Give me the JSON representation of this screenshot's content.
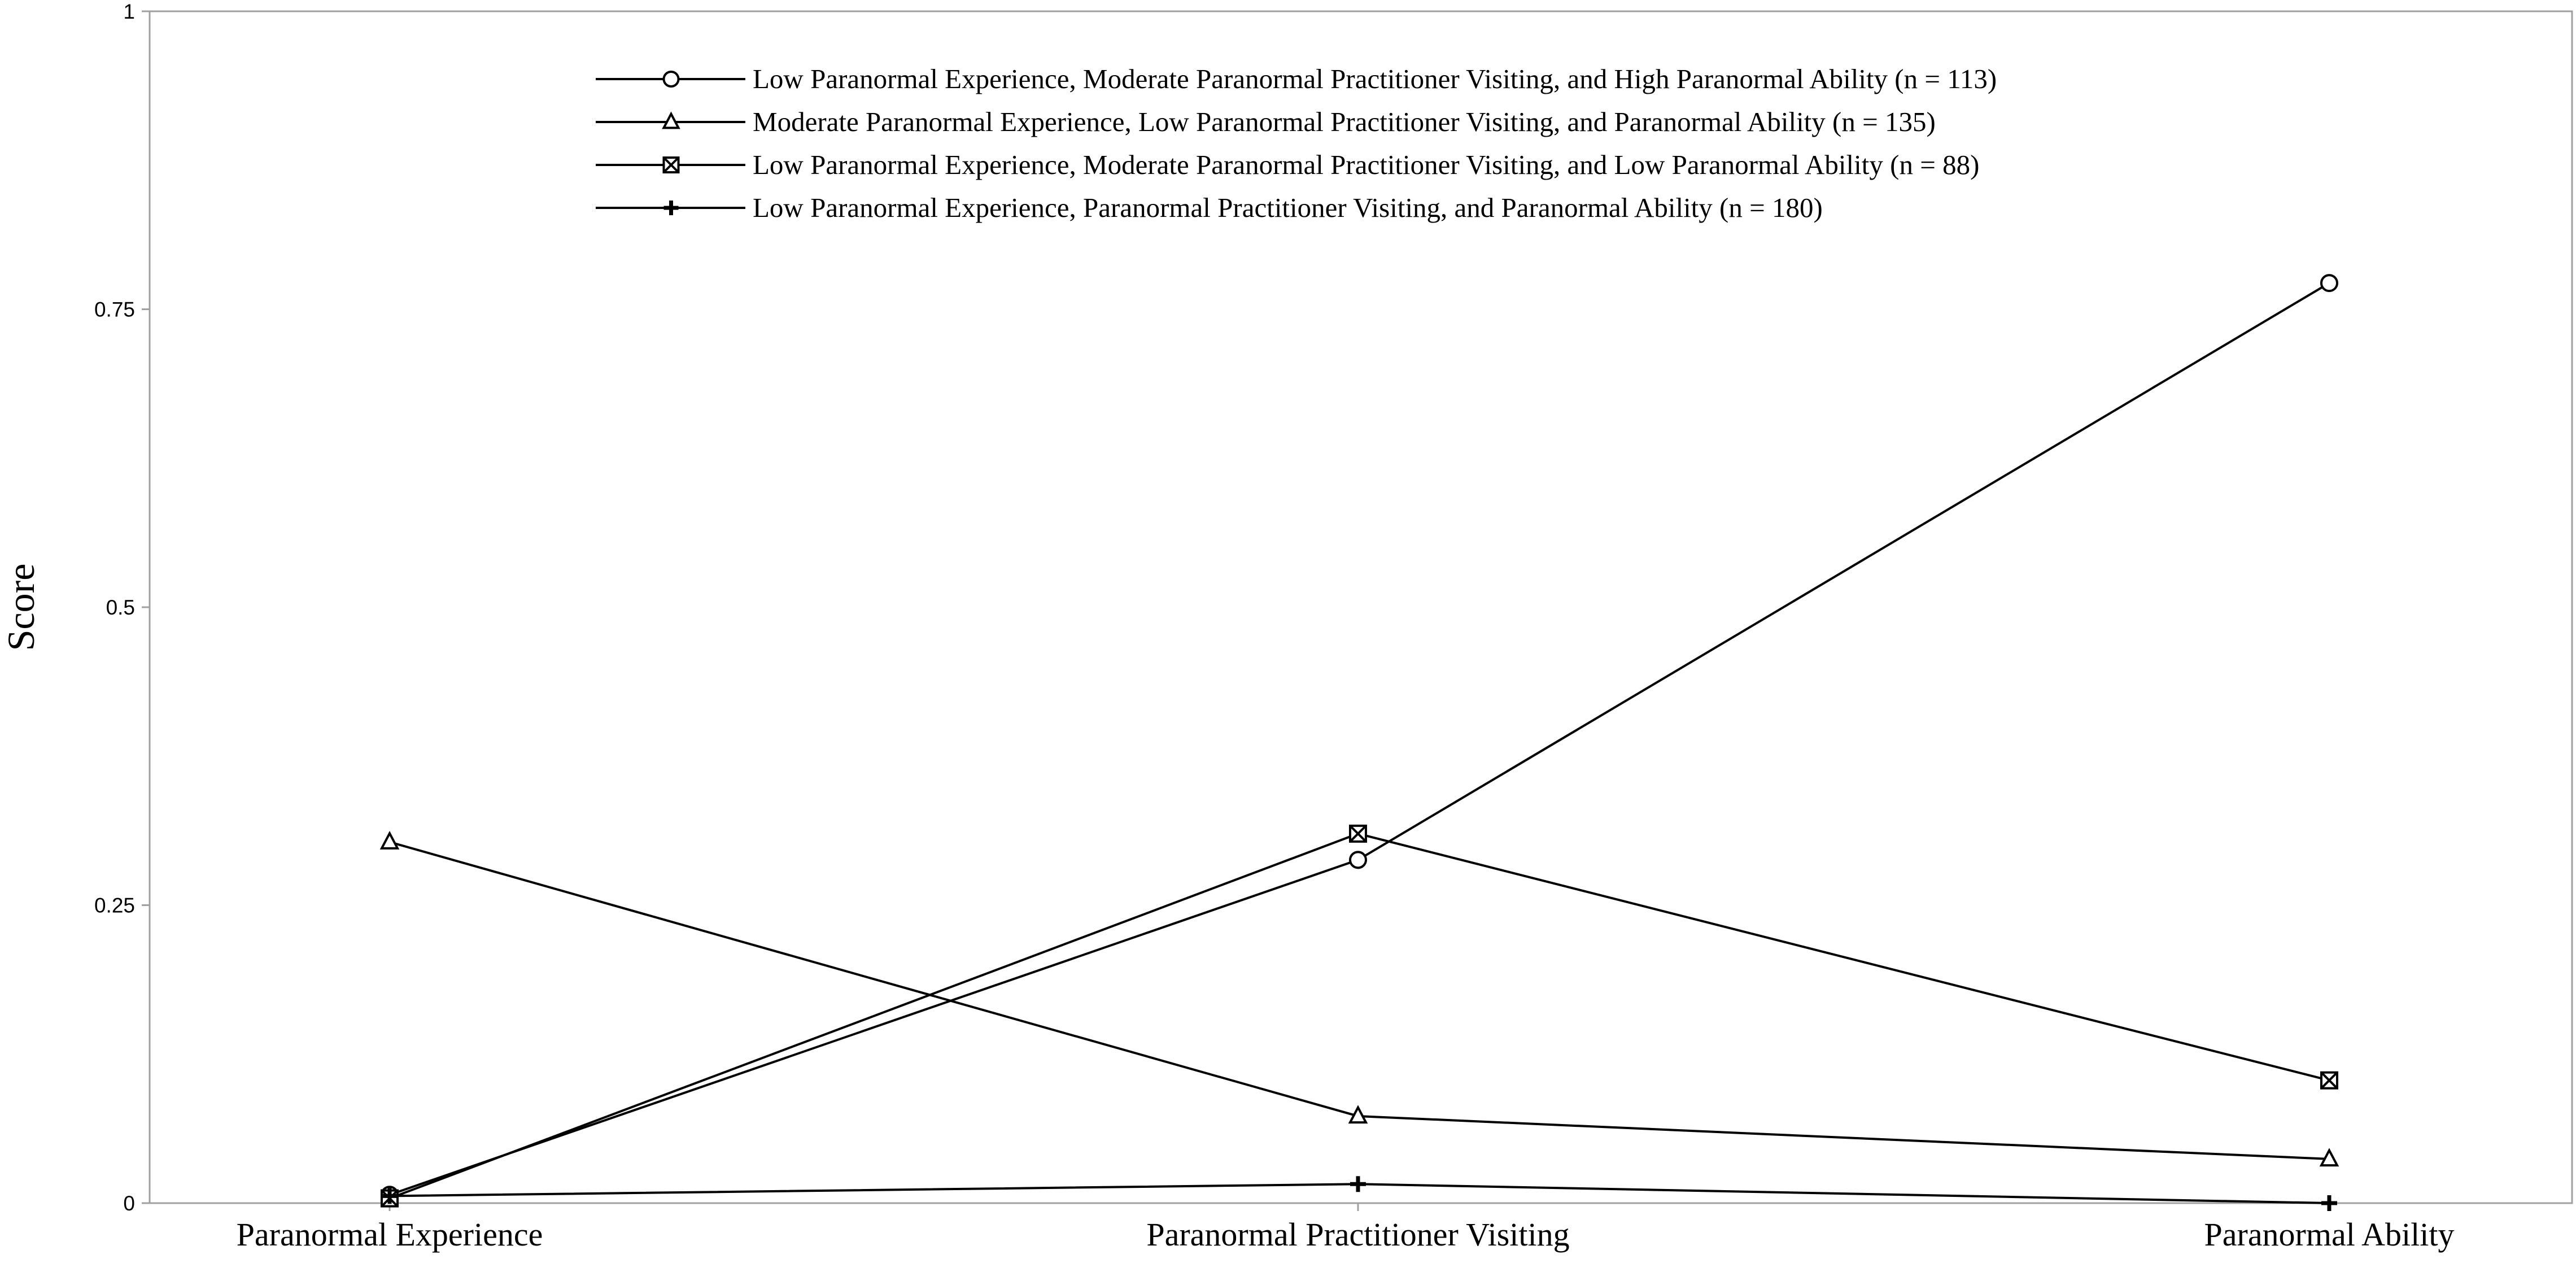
{
  "chart_data": {
    "type": "line",
    "title": "",
    "xlabel": "",
    "ylabel": "Score",
    "categories": [
      "Paranormal Experience",
      "Paranormal Practitioner Visiting",
      "Paranormal Ability"
    ],
    "ylim": [
      0,
      1
    ],
    "yticks": [
      0,
      0.25,
      0.5,
      0.75,
      1
    ],
    "ytick_labels": [
      "0",
      "0.25",
      "0.5",
      "0.75",
      "1"
    ],
    "grid": false,
    "legend_position": "top-center",
    "series": [
      {
        "name": "Low Paranormal Experience, Moderate Paranormal Practitioner Visiting, and High Paranormal Ability (n = 113)",
        "marker": "circle",
        "values": [
          0.007,
          0.288,
          0.772
        ]
      },
      {
        "name": "Moderate Paranormal Experience, Low Paranormal Practitioner Visiting, and Paranormal Ability (n = 135)",
        "marker": "triangle",
        "values": [
          0.303,
          0.073,
          0.037
        ]
      },
      {
        "name": "Low Paranormal Experience, Moderate Paranormal Practitioner Visiting, and Low Paranormal Ability (n = 88)",
        "marker": "square-x",
        "values": [
          0.004,
          0.31,
          0.103
        ]
      },
      {
        "name": "Low Paranormal Experience, Paranormal Practitioner Visiting, and Paranormal Ability (n = 180)",
        "marker": "plus",
        "values": [
          0.006,
          0.016,
          0.0
        ]
      }
    ],
    "line_color": "#000000"
  }
}
